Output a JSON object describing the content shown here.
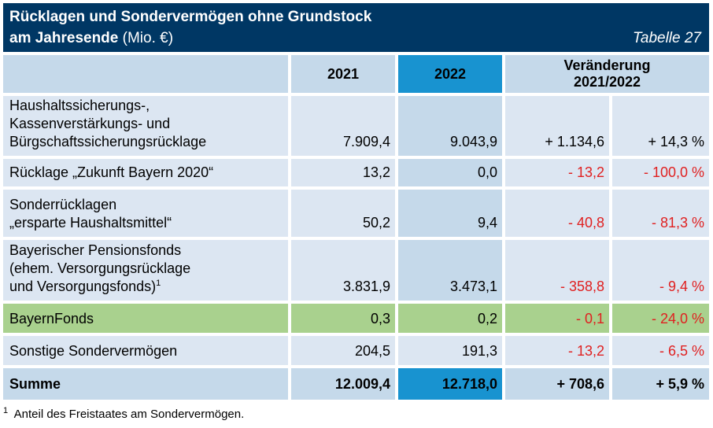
{
  "header": {
    "title_line1": "Rücklagen und Sondervermögen ohne Grundstock",
    "title_line2_bold": "am Jahresende",
    "title_line2_rest": " (Mio. €)",
    "table_number": "Tabelle 27"
  },
  "columns": {
    "y2021": "2021",
    "y2022": "2022",
    "change_line1": "Veränderung",
    "change_line2": "2021/2022"
  },
  "rows": [
    {
      "label": [
        "Haushaltssicherungs-,",
        "Kassenverstärkungs- und",
        "Bürgschaftssicherungsrücklage"
      ],
      "v2021": "7.909,4",
      "v2022": "9.043,9",
      "abs": "+ 1.134,6",
      "pct": "+ 14,3 %"
    },
    {
      "label": [
        "Rücklage „Zukunft Bayern 2020“"
      ],
      "v2021": "13,2",
      "v2022": "0,0",
      "abs": "- 13,2",
      "pct": "- 100,0 %"
    },
    {
      "label": [
        "Sonderrücklagen",
        "„ersparte Haushaltsmittel“"
      ],
      "v2021": "50,2",
      "v2022": "9,4",
      "abs": "- 40,8",
      "pct": "- 81,3 %"
    },
    {
      "label": [
        "Bayerischer Pensionsfonds",
        "(ehem. Versorgungsrücklage",
        "und Versorgungsfonds)"
      ],
      "label_sup": "1",
      "v2021": "3.831,9",
      "v2022": "3.473,1",
      "abs": "- 358,8",
      "pct": "- 9,4 %"
    },
    {
      "label": [
        "BayernFonds"
      ],
      "v2021": "0,3",
      "v2022": "0,2",
      "abs": "- 0,1",
      "pct": "- 24,0 %"
    },
    {
      "label": [
        "Sonstige Sondervermögen"
      ],
      "v2021": "204,5",
      "v2022": "191,3",
      "abs": "- 13,2",
      "pct": "- 6,5 %"
    }
  ],
  "sum": {
    "label": "Summe",
    "v2021": "12.009,4",
    "v2022": "12.718,0",
    "abs": "+ 708,6",
    "pct": "+ 5,9 %"
  },
  "footnote": {
    "mark": "1",
    "text": "Anteil des Freistaates am Sondervermögen."
  },
  "colors": {
    "header_bg": "#003764",
    "highlight": "#1893d0",
    "cell_bg": "#dce6f2",
    "green": "#a9d18e",
    "negative": "#e02020"
  }
}
